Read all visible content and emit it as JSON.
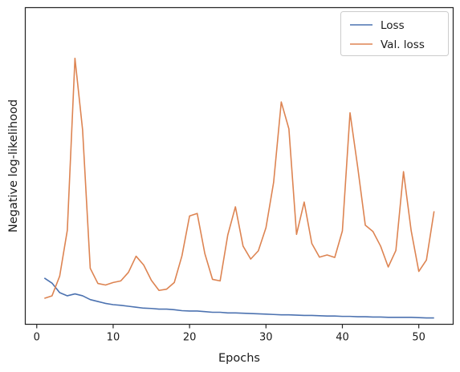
{
  "chart_data": {
    "type": "line",
    "xlabel": "Epochs",
    "ylabel": "Negative log-likelihood",
    "xlim": [
      -1.5,
      54.5
    ],
    "ylim": [
      0,
      1
    ],
    "xticks": [
      0,
      10,
      20,
      30,
      40,
      50
    ],
    "yticks_labeled": false,
    "grid": false,
    "legend_position": "top-right",
    "series": [
      {
        "name": "Loss",
        "color": "#4c72b0",
        "x": [
          1,
          2,
          3,
          4,
          5,
          6,
          7,
          8,
          9,
          10,
          11,
          12,
          13,
          14,
          15,
          16,
          17,
          18,
          19,
          20,
          21,
          22,
          23,
          24,
          25,
          26,
          27,
          28,
          29,
          30,
          31,
          32,
          33,
          34,
          35,
          36,
          37,
          38,
          39,
          40,
          41,
          42,
          43,
          44,
          45,
          46,
          47,
          48,
          49,
          50,
          51,
          52
        ],
        "y": [
          0.146,
          0.13,
          0.1,
          0.09,
          0.096,
          0.09,
          0.078,
          0.072,
          0.066,
          0.062,
          0.06,
          0.057,
          0.054,
          0.051,
          0.05,
          0.048,
          0.048,
          0.046,
          0.043,
          0.042,
          0.042,
          0.04,
          0.038,
          0.038,
          0.036,
          0.036,
          0.035,
          0.034,
          0.033,
          0.032,
          0.031,
          0.03,
          0.03,
          0.029,
          0.028,
          0.028,
          0.027,
          0.026,
          0.026,
          0.025,
          0.025,
          0.024,
          0.024,
          0.023,
          0.023,
          0.022,
          0.022,
          0.022,
          0.022,
          0.021,
          0.02,
          0.02
        ]
      },
      {
        "name": "Val. loss",
        "color": "#dd8452",
        "x": [
          1,
          2,
          3,
          4,
          5,
          6,
          7,
          8,
          9,
          10,
          11,
          12,
          13,
          14,
          15,
          16,
          17,
          18,
          19,
          20,
          21,
          22,
          23,
          24,
          25,
          26,
          27,
          28,
          29,
          30,
          31,
          32,
          33,
          34,
          35,
          36,
          37,
          38,
          39,
          40,
          41,
          42,
          43,
          44,
          45,
          46,
          47,
          48,
          49,
          50,
          51,
          52
        ],
        "y": [
          0.082,
          0.09,
          0.152,
          0.297,
          0.84,
          0.614,
          0.177,
          0.129,
          0.124,
          0.132,
          0.137,
          0.164,
          0.215,
          0.187,
          0.139,
          0.107,
          0.111,
          0.132,
          0.216,
          0.342,
          0.35,
          0.223,
          0.142,
          0.137,
          0.282,
          0.371,
          0.247,
          0.206,
          0.232,
          0.305,
          0.448,
          0.702,
          0.617,
          0.284,
          0.386,
          0.255,
          0.212,
          0.219,
          0.211,
          0.295,
          0.668,
          0.497,
          0.313,
          0.293,
          0.247,
          0.181,
          0.233,
          0.482,
          0.296,
          0.167,
          0.203,
          0.357
        ]
      }
    ]
  }
}
